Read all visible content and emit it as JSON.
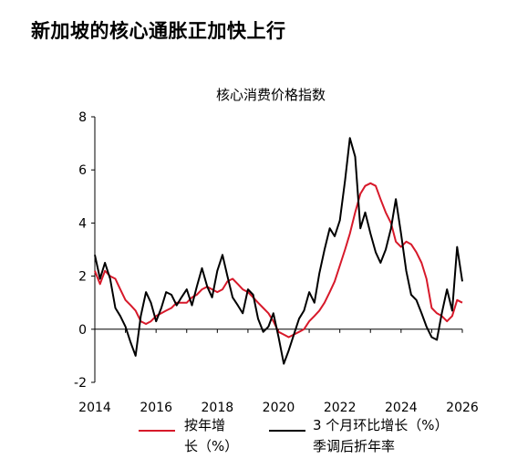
{
  "headline": "新加坡的核心通胀正加快上行",
  "chart_data": {
    "type": "line",
    "title": "核心消费价格指数",
    "xlabel": "",
    "ylabel": "",
    "x_ticks": [
      "2014",
      "2016",
      "2018",
      "2020",
      "2022",
      "2024",
      "2026"
    ],
    "xlim": [
      2014.0,
      2026.0
    ],
    "y_ticks": [
      "8",
      "6",
      "4",
      "2",
      "0",
      "-2"
    ],
    "ylim": [
      -2,
      8
    ],
    "grid": false,
    "legend_position": "bottom",
    "series": [
      {
        "name": "按年增长（%）",
        "legend_lines": [
          "按年增",
          "长（%）"
        ],
        "color": "#d7192a",
        "points": [
          [
            2014.0,
            2.2
          ],
          [
            2014.17,
            1.7
          ],
          [
            2014.33,
            2.2
          ],
          [
            2014.5,
            2.0
          ],
          [
            2014.67,
            1.9
          ],
          [
            2014.83,
            1.5
          ],
          [
            2015.0,
            1.1
          ],
          [
            2015.17,
            0.9
          ],
          [
            2015.33,
            0.7
          ],
          [
            2015.5,
            0.3
          ],
          [
            2015.67,
            0.2
          ],
          [
            2015.83,
            0.3
          ],
          [
            2016.0,
            0.5
          ],
          [
            2016.17,
            0.6
          ],
          [
            2016.33,
            0.7
          ],
          [
            2016.5,
            0.8
          ],
          [
            2016.67,
            1.0
          ],
          [
            2016.83,
            1.0
          ],
          [
            2017.0,
            1.0
          ],
          [
            2017.17,
            1.2
          ],
          [
            2017.33,
            1.3
          ],
          [
            2017.5,
            1.5
          ],
          [
            2017.67,
            1.6
          ],
          [
            2017.83,
            1.5
          ],
          [
            2018.0,
            1.4
          ],
          [
            2018.17,
            1.5
          ],
          [
            2018.33,
            1.8
          ],
          [
            2018.5,
            1.9
          ],
          [
            2018.67,
            1.7
          ],
          [
            2018.83,
            1.5
          ],
          [
            2019.0,
            1.4
          ],
          [
            2019.17,
            1.2
          ],
          [
            2019.33,
            1.0
          ],
          [
            2019.5,
            0.8
          ],
          [
            2019.67,
            0.6
          ],
          [
            2019.83,
            0.3
          ],
          [
            2020.0,
            -0.1
          ],
          [
            2020.17,
            -0.2
          ],
          [
            2020.33,
            -0.3
          ],
          [
            2020.5,
            -0.2
          ],
          [
            2020.67,
            -0.1
          ],
          [
            2020.83,
            0.0
          ],
          [
            2021.0,
            0.3
          ],
          [
            2021.17,
            0.5
          ],
          [
            2021.33,
            0.7
          ],
          [
            2021.5,
            1.0
          ],
          [
            2021.67,
            1.4
          ],
          [
            2021.83,
            1.8
          ],
          [
            2022.0,
            2.4
          ],
          [
            2022.17,
            3.0
          ],
          [
            2022.33,
            3.6
          ],
          [
            2022.5,
            4.4
          ],
          [
            2022.67,
            5.1
          ],
          [
            2022.83,
            5.4
          ],
          [
            2023.0,
            5.5
          ],
          [
            2023.17,
            5.4
          ],
          [
            2023.33,
            4.9
          ],
          [
            2023.5,
            4.4
          ],
          [
            2023.67,
            4.0
          ],
          [
            2023.83,
            3.3
          ],
          [
            2024.0,
            3.1
          ],
          [
            2024.17,
            3.3
          ],
          [
            2024.33,
            3.2
          ],
          [
            2024.5,
            2.9
          ],
          [
            2024.67,
            2.5
          ],
          [
            2024.83,
            1.9
          ],
          [
            2025.0,
            0.8
          ],
          [
            2025.17,
            0.6
          ],
          [
            2025.33,
            0.5
          ],
          [
            2025.5,
            0.3
          ],
          [
            2025.67,
            0.5
          ],
          [
            2025.83,
            1.1
          ],
          [
            2026.0,
            1.0
          ]
        ]
      },
      {
        "name": "3 个月环比增长（%）季调后折年率",
        "legend_lines": [
          "3 个月环比增长（%）",
          "季调后折年率"
        ],
        "color": "#000000",
        "points": [
          [
            2014.0,
            2.8
          ],
          [
            2014.17,
            1.9
          ],
          [
            2014.33,
            2.5
          ],
          [
            2014.5,
            1.9
          ],
          [
            2014.67,
            0.8
          ],
          [
            2014.83,
            0.5
          ],
          [
            2015.0,
            0.1
          ],
          [
            2015.17,
            -0.5
          ],
          [
            2015.33,
            -1.0
          ],
          [
            2015.5,
            0.5
          ],
          [
            2015.67,
            1.4
          ],
          [
            2015.83,
            1.0
          ],
          [
            2016.0,
            0.3
          ],
          [
            2016.17,
            0.8
          ],
          [
            2016.33,
            1.4
          ],
          [
            2016.5,
            1.3
          ],
          [
            2016.67,
            0.9
          ],
          [
            2016.83,
            1.2
          ],
          [
            2017.0,
            1.5
          ],
          [
            2017.17,
            0.9
          ],
          [
            2017.33,
            1.6
          ],
          [
            2017.5,
            2.3
          ],
          [
            2017.67,
            1.6
          ],
          [
            2017.83,
            1.2
          ],
          [
            2018.0,
            2.2
          ],
          [
            2018.17,
            2.8
          ],
          [
            2018.33,
            2.0
          ],
          [
            2018.5,
            1.2
          ],
          [
            2018.67,
            0.9
          ],
          [
            2018.83,
            0.6
          ],
          [
            2019.0,
            1.5
          ],
          [
            2019.17,
            1.3
          ],
          [
            2019.33,
            0.4
          ],
          [
            2019.5,
            -0.1
          ],
          [
            2019.67,
            0.1
          ],
          [
            2019.83,
            0.6
          ],
          [
            2020.0,
            -0.3
          ],
          [
            2020.17,
            -1.3
          ],
          [
            2020.33,
            -0.8
          ],
          [
            2020.5,
            -0.2
          ],
          [
            2020.67,
            0.4
          ],
          [
            2020.83,
            0.7
          ],
          [
            2021.0,
            1.4
          ],
          [
            2021.17,
            1.0
          ],
          [
            2021.33,
            2.1
          ],
          [
            2021.5,
            3.0
          ],
          [
            2021.67,
            3.8
          ],
          [
            2021.83,
            3.5
          ],
          [
            2022.0,
            4.1
          ],
          [
            2022.17,
            5.6
          ],
          [
            2022.33,
            7.2
          ],
          [
            2022.5,
            6.5
          ],
          [
            2022.67,
            3.8
          ],
          [
            2022.83,
            4.4
          ],
          [
            2023.0,
            3.6
          ],
          [
            2023.17,
            2.9
          ],
          [
            2023.33,
            2.5
          ],
          [
            2023.5,
            3.0
          ],
          [
            2023.67,
            3.8
          ],
          [
            2023.83,
            4.9
          ],
          [
            2024.0,
            3.6
          ],
          [
            2024.17,
            2.2
          ],
          [
            2024.33,
            1.3
          ],
          [
            2024.5,
            1.1
          ],
          [
            2024.67,
            0.6
          ],
          [
            2024.83,
            0.1
          ],
          [
            2025.0,
            -0.3
          ],
          [
            2025.17,
            -0.4
          ],
          [
            2025.33,
            0.6
          ],
          [
            2025.5,
            1.5
          ],
          [
            2025.67,
            0.7
          ],
          [
            2025.83,
            3.1
          ],
          [
            2026.0,
            1.8
          ]
        ]
      }
    ]
  }
}
